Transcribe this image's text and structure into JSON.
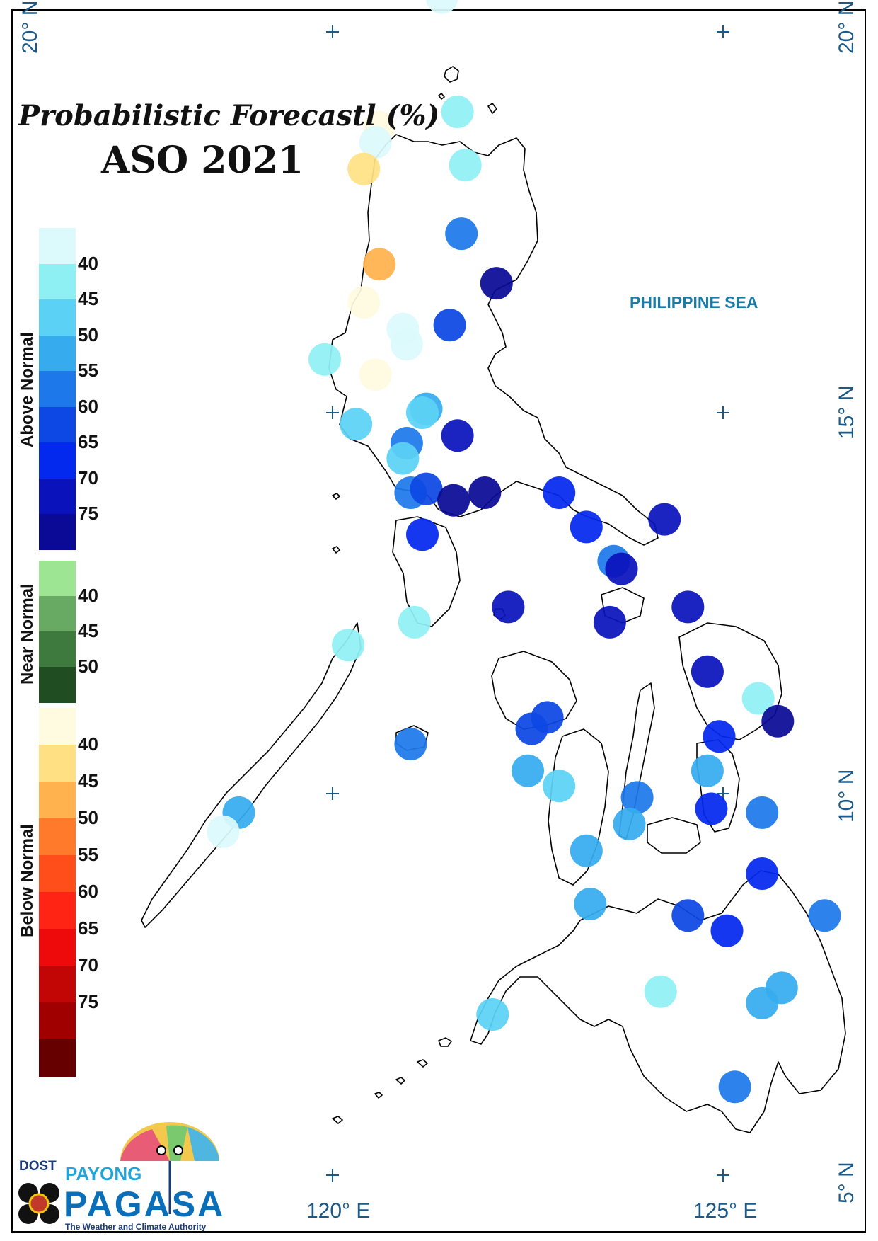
{
  "title": {
    "line1": "Probabilistic Forecastl (%)",
    "line2": "ASO 2021"
  },
  "sea_label": "PHILIPPINE SEA",
  "graticule": {
    "lat_top": "20° N",
    "lat_mid": "15° N",
    "lat_low": "10° N",
    "lat_bottom": "5° N",
    "lon_left": "120° E",
    "lon_right": "125° E"
  },
  "legend": {
    "above_normal": {
      "label": "Above Normal",
      "ticks": [
        "40",
        "45",
        "50",
        "55",
        "60",
        "65",
        "70",
        "75"
      ],
      "colors": [
        "#dcfafc",
        "#8ff0f4",
        "#5bd2f5",
        "#36acef",
        "#1d78ea",
        "#0d47e4",
        "#0328ee",
        "#0a12bc",
        "#0a0a96"
      ]
    },
    "near_normal": {
      "label": "Near Normal",
      "ticks": [
        "40",
        "45",
        "50"
      ],
      "colors": [
        "#9de493",
        "#68aa64",
        "#3e7a3e",
        "#214d22"
      ]
    },
    "below_normal": {
      "label": "Below Normal",
      "ticks": [
        "40",
        "45",
        "50",
        "55",
        "60",
        "65",
        "70",
        "75"
      ],
      "colors": [
        "#fffbe0",
        "#ffe184",
        "#ffb24e",
        "#ff7a2a",
        "#ff4e1a",
        "#ff2414",
        "#ee0a0a",
        "#c20606",
        "#a00000",
        "#660000"
      ]
    }
  },
  "stations": [
    {
      "lon": 121.4,
      "lat": 20.45,
      "category": "above",
      "color": "#dcfafc"
    },
    {
      "lon": 121.6,
      "lat": 18.95,
      "category": "above",
      "color": "#8ff0f4"
    },
    {
      "lon": 120.6,
      "lat": 18.75,
      "category": "below",
      "color": "#fffbe0"
    },
    {
      "lon": 120.55,
      "lat": 18.55,
      "category": "above",
      "color": "#dcfafc"
    },
    {
      "lon": 120.4,
      "lat": 18.2,
      "category": "below",
      "color": "#ffe184"
    },
    {
      "lon": 121.7,
      "lat": 18.25,
      "category": "above",
      "color": "#8ff0f4"
    },
    {
      "lon": 121.65,
      "lat": 17.35,
      "category": "above",
      "color": "#1d78ea"
    },
    {
      "lon": 120.6,
      "lat": 16.95,
      "category": "below",
      "color": "#ffb24e"
    },
    {
      "lon": 122.1,
      "lat": 16.7,
      "category": "above",
      "color": "#0a0a96"
    },
    {
      "lon": 120.4,
      "lat": 16.45,
      "category": "below",
      "color": "#fffbe0"
    },
    {
      "lon": 121.5,
      "lat": 16.15,
      "category": "above",
      "color": "#0d47e4"
    },
    {
      "lon": 120.9,
      "lat": 16.1,
      "category": "above",
      "color": "#dcfafc"
    },
    {
      "lon": 120.95,
      "lat": 15.9,
      "category": "above",
      "color": "#dcfafc"
    },
    {
      "lon": 119.9,
      "lat": 15.7,
      "category": "above",
      "color": "#8ff0f4"
    },
    {
      "lon": 120.55,
      "lat": 15.5,
      "category": "below",
      "color": "#fffbe0"
    },
    {
      "lon": 121.2,
      "lat": 15.05,
      "category": "above",
      "color": "#36acef"
    },
    {
      "lon": 121.15,
      "lat": 15.0,
      "category": "above",
      "color": "#5bd2f5"
    },
    {
      "lon": 120.3,
      "lat": 14.85,
      "category": "above",
      "color": "#5bd2f5"
    },
    {
      "lon": 121.6,
      "lat": 14.7,
      "category": "above",
      "color": "#0a12bc"
    },
    {
      "lon": 120.95,
      "lat": 14.6,
      "category": "above",
      "color": "#1d78ea"
    },
    {
      "lon": 120.9,
      "lat": 14.4,
      "category": "above",
      "color": "#5bd2f5"
    },
    {
      "lon": 121.0,
      "lat": 13.95,
      "category": "above",
      "color": "#1d78ea"
    },
    {
      "lon": 121.2,
      "lat": 14.0,
      "category": "above",
      "color": "#0d47e4"
    },
    {
      "lon": 121.55,
      "lat": 13.85,
      "category": "above",
      "color": "#0a0a96"
    },
    {
      "lon": 121.95,
      "lat": 13.95,
      "category": "above",
      "color": "#0a0a96"
    },
    {
      "lon": 122.9,
      "lat": 13.95,
      "category": "above",
      "color": "#0328ee"
    },
    {
      "lon": 121.15,
      "lat": 13.4,
      "category": "above",
      "color": "#0328ee"
    },
    {
      "lon": 123.25,
      "lat": 13.5,
      "category": "above",
      "color": "#0328ee"
    },
    {
      "lon": 124.25,
      "lat": 13.6,
      "category": "above",
      "color": "#0a12bc"
    },
    {
      "lon": 123.6,
      "lat": 13.05,
      "category": "above",
      "color": "#1d78ea"
    },
    {
      "lon": 123.7,
      "lat": 12.95,
      "category": "above",
      "color": "#0a12bc"
    },
    {
      "lon": 122.25,
      "lat": 12.45,
      "category": "above",
      "color": "#0a12bc"
    },
    {
      "lon": 123.55,
      "lat": 12.25,
      "category": "above",
      "color": "#0a12bc"
    },
    {
      "lon": 124.55,
      "lat": 12.45,
      "category": "above",
      "color": "#0a12bc"
    },
    {
      "lon": 121.05,
      "lat": 12.25,
      "category": "above",
      "color": "#8ff0f4"
    },
    {
      "lon": 120.2,
      "lat": 11.95,
      "category": "above",
      "color": "#8ff0f4"
    },
    {
      "lon": 124.8,
      "lat": 11.6,
      "category": "above",
      "color": "#0a12bc"
    },
    {
      "lon": 125.45,
      "lat": 11.25,
      "category": "above",
      "color": "#8ff0f4"
    },
    {
      "lon": 122.75,
      "lat": 11.0,
      "category": "above",
      "color": "#0d47e4"
    },
    {
      "lon": 122.55,
      "lat": 10.85,
      "category": "above",
      "color": "#0d47e4"
    },
    {
      "lon": 124.95,
      "lat": 10.75,
      "category": "above",
      "color": "#0328ee"
    },
    {
      "lon": 125.7,
      "lat": 10.95,
      "category": "above",
      "color": "#0a0a96"
    },
    {
      "lon": 121.0,
      "lat": 10.65,
      "category": "above",
      "color": "#1d78ea"
    },
    {
      "lon": 122.5,
      "lat": 10.3,
      "category": "above",
      "color": "#36acef"
    },
    {
      "lon": 124.8,
      "lat": 10.3,
      "category": "above",
      "color": "#36acef"
    },
    {
      "lon": 122.9,
      "lat": 10.1,
      "category": "above",
      "color": "#5bd2f5"
    },
    {
      "lon": 123.9,
      "lat": 9.95,
      "category": "above",
      "color": "#1d78ea"
    },
    {
      "lon": 124.85,
      "lat": 9.8,
      "category": "above",
      "color": "#0328ee"
    },
    {
      "lon": 118.8,
      "lat": 9.75,
      "category": "above",
      "color": "#36acef"
    },
    {
      "lon": 125.5,
      "lat": 9.75,
      "category": "above",
      "color": "#1d78ea"
    },
    {
      "lon": 118.6,
      "lat": 9.5,
      "category": "above",
      "color": "#dcfafc"
    },
    {
      "lon": 123.8,
      "lat": 9.6,
      "category": "above",
      "color": "#36acef"
    },
    {
      "lon": 123.25,
      "lat": 9.25,
      "category": "above",
      "color": "#36acef"
    },
    {
      "lon": 125.5,
      "lat": 8.95,
      "category": "above",
      "color": "#0328ee"
    },
    {
      "lon": 123.3,
      "lat": 8.55,
      "category": "above",
      "color": "#36acef"
    },
    {
      "lon": 124.55,
      "lat": 8.4,
      "category": "above",
      "color": "#0d47e4"
    },
    {
      "lon": 125.05,
      "lat": 8.2,
      "category": "above",
      "color": "#0328ee"
    },
    {
      "lon": 126.3,
      "lat": 8.4,
      "category": "above",
      "color": "#1d78ea"
    },
    {
      "lon": 124.2,
      "lat": 7.4,
      "category": "above",
      "color": "#8ff0f4"
    },
    {
      "lon": 125.75,
      "lat": 7.45,
      "category": "above",
      "color": "#36acef"
    },
    {
      "lon": 125.5,
      "lat": 7.25,
      "category": "above",
      "color": "#36acef"
    },
    {
      "lon": 122.05,
      "lat": 7.1,
      "category": "above",
      "color": "#5bd2f5"
    },
    {
      "lon": 125.15,
      "lat": 6.15,
      "category": "above",
      "color": "#1d78ea"
    }
  ],
  "logo": {
    "dost": "DOST",
    "payong": "PAYONG",
    "pagasa": "PAGASA",
    "tagline": "The Weather and Climate Authority"
  }
}
